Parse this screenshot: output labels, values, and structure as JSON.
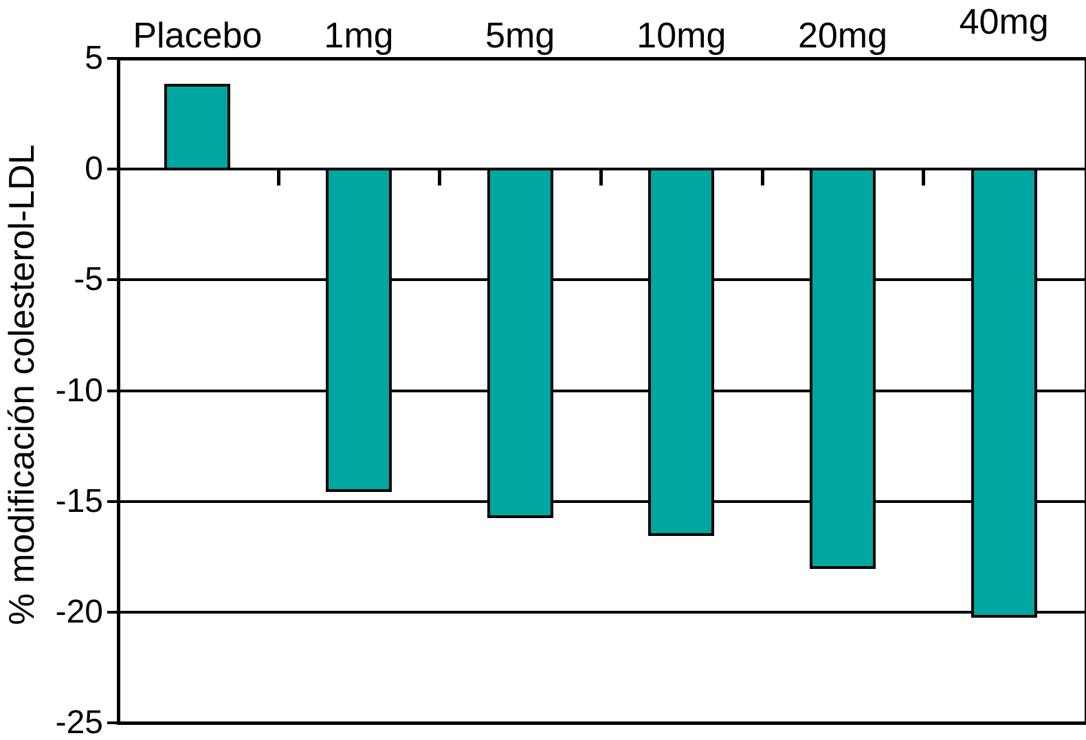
{
  "chart_data": {
    "type": "bar",
    "title": "",
    "categories": [
      "Placebo",
      "1mg",
      "5mg",
      "10mg",
      "20mg",
      "40mg"
    ],
    "values": [
      3.8,
      -14.5,
      -15.7,
      -16.5,
      -18,
      -20.2
    ],
    "xlabel": "",
    "ylabel": "% modificación colesterol-LDL",
    "yticks": [
      5,
      0,
      -5,
      -10,
      -15,
      -20,
      -25
    ],
    "ylim": [
      -25,
      5
    ],
    "grid": true,
    "legend": false,
    "bar_color": "#00A7A0",
    "bar_border_color": "#000000",
    "axis_color": "#000000",
    "background_color": "#ffffff"
  }
}
